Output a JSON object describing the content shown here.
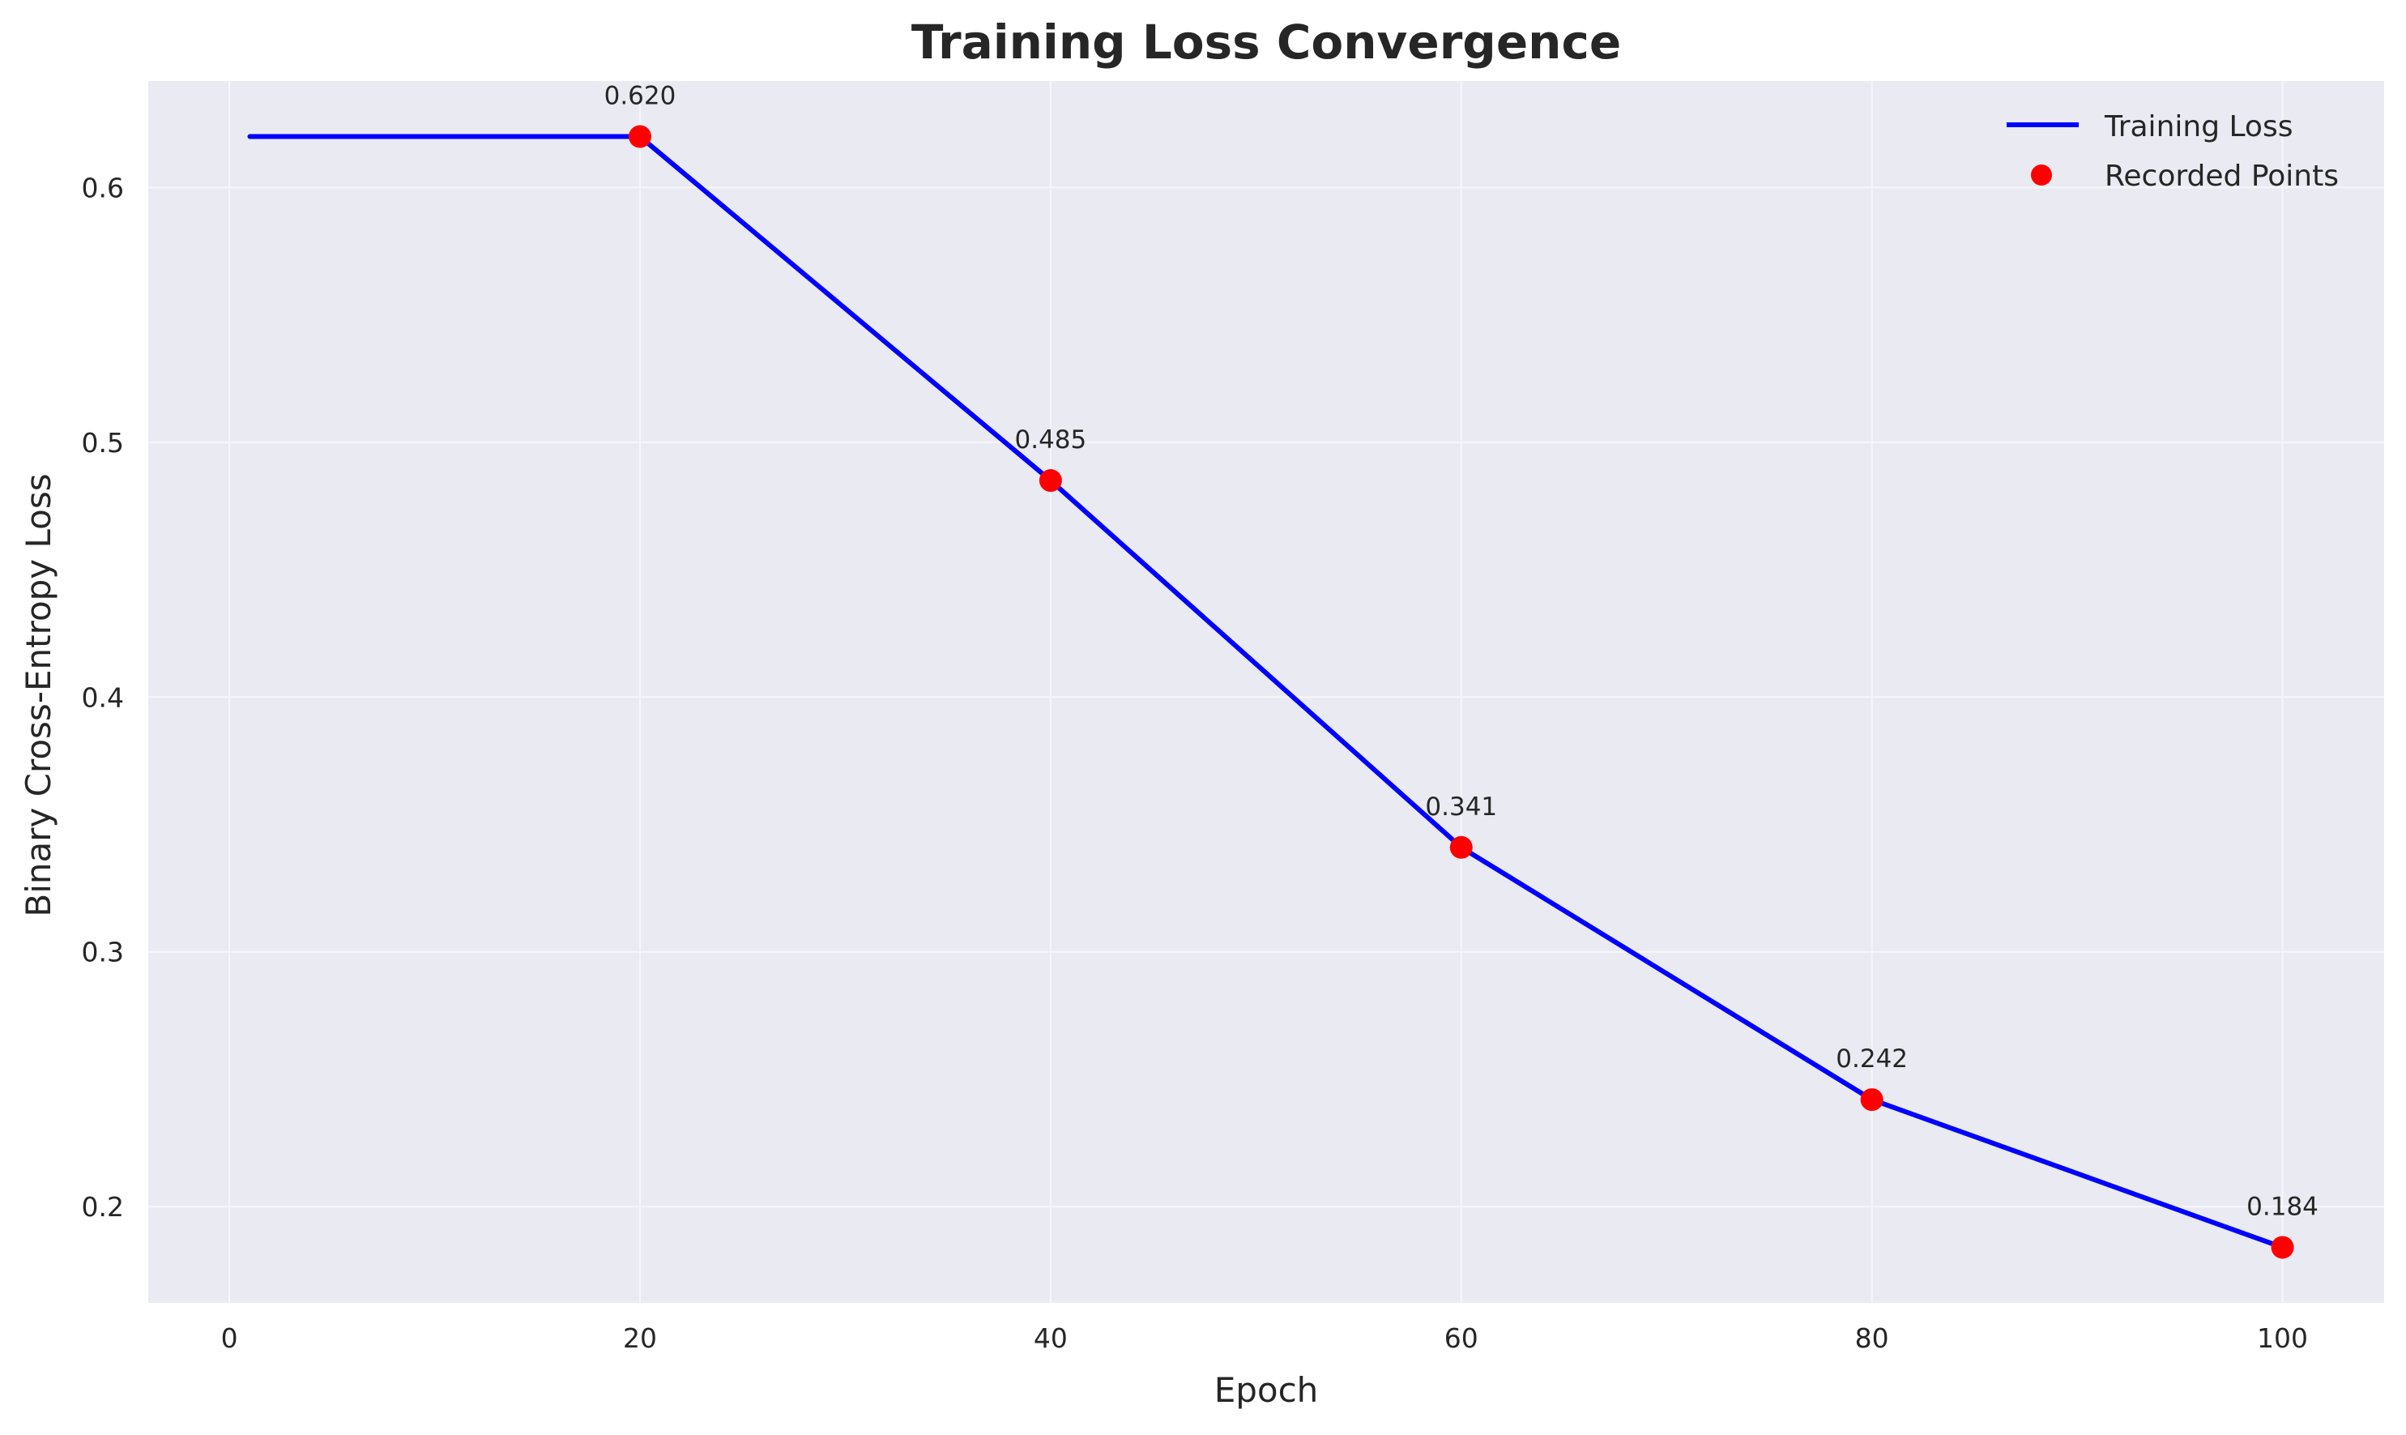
{
  "chart_data": {
    "type": "line",
    "title": "Training Loss Convergence",
    "xlabel": "Epoch",
    "ylabel": "Binary Cross-Entropy Loss",
    "xlim": [
      -3.95,
      104.95
    ],
    "ylim": [
      0.1622,
      0.6418
    ],
    "x_ticks": [
      0,
      20,
      40,
      60,
      80,
      100
    ],
    "y_ticks": [
      0.2,
      0.3,
      0.4,
      0.5,
      0.6
    ],
    "x_tick_labels": [
      "0",
      "20",
      "40",
      "60",
      "80",
      "100"
    ],
    "y_tick_labels": [
      "0.2",
      "0.3",
      "0.4",
      "0.5",
      "0.6"
    ],
    "grid": true,
    "legend_position": "top-right",
    "series": [
      {
        "name": "Training Loss",
        "type": "line",
        "color": "#0000ff",
        "x": [
          1,
          20,
          40,
          60,
          80,
          100
        ],
        "y": [
          0.62,
          0.62,
          0.485,
          0.341,
          0.242,
          0.184
        ]
      },
      {
        "name": "Recorded Points",
        "type": "scatter",
        "color": "#ff0000",
        "x": [
          20,
          40,
          60,
          80,
          100
        ],
        "y": [
          0.62,
          0.485,
          0.341,
          0.242,
          0.184
        ]
      }
    ],
    "annotations": [
      {
        "x": 20,
        "y": 0.62,
        "text": "0.620"
      },
      {
        "x": 40,
        "y": 0.485,
        "text": "0.485"
      },
      {
        "x": 60,
        "y": 0.341,
        "text": "0.341"
      },
      {
        "x": 80,
        "y": 0.242,
        "text": "0.242"
      },
      {
        "x": 100,
        "y": 0.184,
        "text": "0.184"
      }
    ],
    "colors": {
      "plot_background": "#eaeaf2",
      "grid": "#f6f6fa",
      "text": "#262626"
    }
  }
}
